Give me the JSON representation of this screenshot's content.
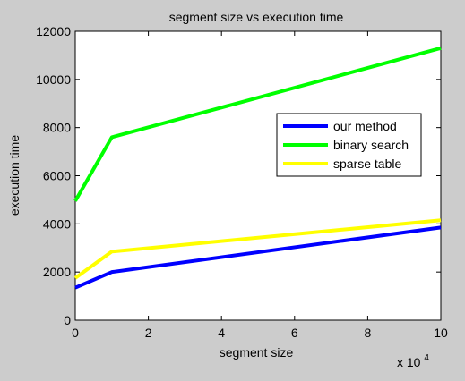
{
  "chart_data": {
    "type": "line",
    "title": "segment size vs execution time",
    "xlabel": "segment size",
    "ylabel": "execution time",
    "x_multiplier_label": {
      "base": "x 10",
      "exponent": "4"
    },
    "xlim": [
      0,
      10
    ],
    "ylim": [
      0,
      12000
    ],
    "x_ticks": [
      0,
      2,
      4,
      6,
      8,
      10
    ],
    "x_tick_labels": [
      "0",
      "2",
      "4",
      "6",
      "8",
      "10"
    ],
    "y_ticks": [
      0,
      2000,
      4000,
      6000,
      8000,
      10000,
      12000
    ],
    "y_tick_labels": [
      "0",
      "2000",
      "4000",
      "6000",
      "8000",
      "10000",
      "12000"
    ],
    "grid": false,
    "legend_position": "center-right",
    "series": [
      {
        "name": "our method",
        "color": "#0000ff",
        "x": [
          0,
          1,
          10
        ],
        "y": [
          1350,
          2000,
          3850
        ]
      },
      {
        "name": "binary search",
        "color": "#00ff00",
        "x": [
          0,
          1,
          10
        ],
        "y": [
          4950,
          7600,
          11300
        ]
      },
      {
        "name": "sparse table",
        "color": "#ffff00",
        "x": [
          0,
          1,
          10
        ],
        "y": [
          1750,
          2850,
          4150
        ]
      }
    ]
  }
}
